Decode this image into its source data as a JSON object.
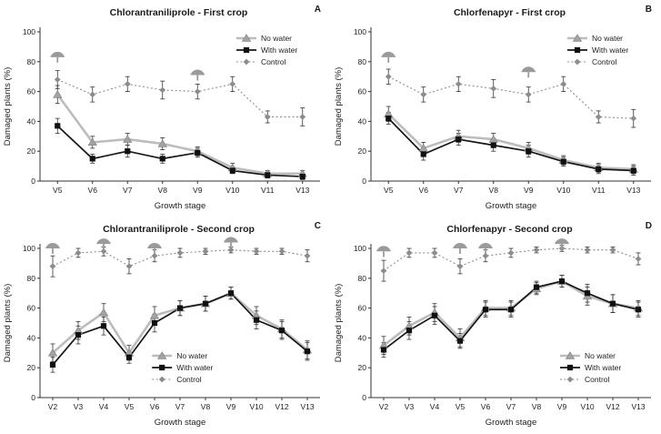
{
  "icons": {
    "spray": "water-spray-icon"
  },
  "colors": {
    "no_water_line": "#bcbcbc",
    "with_water_line": "#161616",
    "control_line": "#8c8c8c",
    "error_bar": "#333333",
    "axis": "#333333"
  },
  "chart_data": [
    {
      "type": "line",
      "title": "Chlorantraniliprole - First crop",
      "panel_label": "A",
      "xlabel": "Growth stage",
      "ylabel": "Damaged plants (%)",
      "ylim": [
        0,
        100
      ],
      "yticks": [
        0,
        20,
        40,
        60,
        80,
        100
      ],
      "categories": [
        "V5",
        "V6",
        "V7",
        "V8",
        "V9",
        "V10",
        "V11",
        "V13"
      ],
      "legend_pos": "top-right",
      "series": [
        {
          "name": "No water",
          "color": "#bcbcbc",
          "marker": "triangle",
          "marker_color": "#a3a3a3",
          "line": "solid",
          "width": 2.6,
          "values": [
            58,
            26,
            28,
            25,
            20,
            9,
            5,
            5
          ],
          "errors": [
            6,
            4,
            4,
            4,
            3,
            3,
            2,
            2
          ]
        },
        {
          "name": "With water",
          "color": "#161616",
          "marker": "square",
          "marker_color": "#111111",
          "line": "solid",
          "width": 1.7,
          "values": [
            37,
            15,
            20,
            15,
            19,
            7,
            4,
            3
          ],
          "errors": [
            5,
            3,
            4,
            3,
            3,
            2,
            2,
            2
          ]
        },
        {
          "name": "Control",
          "color": "#8c8c8c",
          "marker": "diamond",
          "marker_color": "#8c8c8c",
          "line": "dotted",
          "width": 1.1,
          "values": [
            68,
            58,
            65,
            61,
            60,
            65,
            43,
            43
          ],
          "errors": [
            6,
            5,
            5,
            6,
            5,
            5,
            4,
            6
          ]
        }
      ],
      "spray_markers": [
        {
          "category": "V5",
          "y": 83
        },
        {
          "category": "V9",
          "y": 71
        }
      ]
    },
    {
      "type": "line",
      "title": "Chlorfenapyr - First crop",
      "panel_label": "B",
      "xlabel": "Growth stage",
      "ylabel": "Damaged plants (%)",
      "ylim": [
        0,
        100
      ],
      "yticks": [
        0,
        20,
        40,
        60,
        80,
        100
      ],
      "categories": [
        "V5",
        "V6",
        "V7",
        "V8",
        "V9",
        "V10",
        "V11",
        "V13"
      ],
      "legend_pos": "top-right",
      "series": [
        {
          "name": "No water",
          "color": "#bcbcbc",
          "marker": "triangle",
          "marker_color": "#a3a3a3",
          "line": "solid",
          "width": 2.6,
          "values": [
            45,
            22,
            30,
            28,
            22,
            14,
            9,
            8
          ],
          "errors": [
            5,
            4,
            4,
            4,
            4,
            3,
            3,
            3
          ]
        },
        {
          "name": "With water",
          "color": "#161616",
          "marker": "square",
          "marker_color": "#111111",
          "line": "solid",
          "width": 1.7,
          "values": [
            42,
            18,
            28,
            24,
            20,
            13,
            8,
            7
          ],
          "errors": [
            4,
            4,
            4,
            4,
            4,
            3,
            3,
            3
          ]
        },
        {
          "name": "Control",
          "color": "#8c8c8c",
          "marker": "diamond",
          "marker_color": "#8c8c8c",
          "line": "dotted",
          "width": 1.1,
          "values": [
            70,
            58,
            65,
            62,
            58,
            65,
            43,
            42
          ],
          "errors": [
            5,
            5,
            5,
            6,
            5,
            5,
            4,
            6
          ]
        }
      ],
      "spray_markers": [
        {
          "category": "V5",
          "y": 83
        },
        {
          "category": "V9",
          "y": 73
        }
      ]
    },
    {
      "type": "line",
      "title": "Chlorantraniliprole - Second crop",
      "panel_label": "C",
      "xlabel": "Growth stage",
      "ylabel": "Damaged plants (%)",
      "ylim": [
        0,
        100
      ],
      "yticks": [
        0,
        20,
        40,
        60,
        80,
        100
      ],
      "categories": [
        "V2",
        "V3",
        "V4",
        "V5",
        "V6",
        "V7",
        "V8",
        "V9",
        "V10",
        "V12",
        "V13"
      ],
      "legend_pos": "bottom-center",
      "series": [
        {
          "name": "No water",
          "color": "#bcbcbc",
          "marker": "triangle",
          "marker_color": "#a3a3a3",
          "line": "solid",
          "width": 2.6,
          "values": [
            30,
            45,
            57,
            30,
            55,
            60,
            63,
            70,
            55,
            46,
            32
          ],
          "errors": [
            6,
            6,
            6,
            5,
            6,
            5,
            5,
            4,
            6,
            6,
            6
          ]
        },
        {
          "name": "With water",
          "color": "#161616",
          "marker": "square",
          "marker_color": "#111111",
          "line": "solid",
          "width": 1.7,
          "values": [
            22,
            42,
            48,
            27,
            50,
            60,
            63,
            70,
            52,
            45,
            31
          ],
          "errors": [
            5,
            6,
            6,
            4,
            6,
            5,
            5,
            4,
            6,
            6,
            6
          ]
        },
        {
          "name": "Control",
          "color": "#8c8c8c",
          "marker": "diamond",
          "marker_color": "#8c8c8c",
          "line": "dotted",
          "width": 1.1,
          "values": [
            88,
            97,
            98,
            88,
            95,
            97,
            98,
            99,
            98,
            98,
            95
          ],
          "errors": [
            7,
            3,
            3,
            5,
            4,
            3,
            2,
            2,
            2,
            2,
            4
          ]
        }
      ],
      "spray_markers": [
        {
          "category": "V2",
          "y": 100
        },
        {
          "category": "V4",
          "y": 103
        },
        {
          "category": "V6",
          "y": 100
        },
        {
          "category": "V9",
          "y": 104
        }
      ]
    },
    {
      "type": "line",
      "title": "Chlorfenapyr - Second crop",
      "panel_label": "D",
      "xlabel": "Growth stage",
      "ylabel": "Damaged plants (%)",
      "ylim": [
        0,
        100
      ],
      "yticks": [
        0,
        20,
        40,
        60,
        80,
        100
      ],
      "categories": [
        "V2",
        "V3",
        "V4",
        "V5",
        "V6",
        "V7",
        "V8",
        "V9",
        "V10",
        "V12",
        "V13"
      ],
      "legend_pos": "bottom-right",
      "series": [
        {
          "name": "No water",
          "color": "#bcbcbc",
          "marker": "triangle",
          "marker_color": "#a3a3a3",
          "line": "solid",
          "width": 2.6,
          "values": [
            35,
            48,
            57,
            40,
            60,
            60,
            73,
            78,
            68,
            63,
            60
          ],
          "errors": [
            6,
            6,
            6,
            6,
            5,
            5,
            4,
            4,
            6,
            6,
            5
          ]
        },
        {
          "name": "With water",
          "color": "#161616",
          "marker": "square",
          "marker_color": "#111111",
          "line": "solid",
          "width": 1.7,
          "values": [
            32,
            45,
            55,
            38,
            59,
            59,
            74,
            78,
            70,
            63,
            59
          ],
          "errors": [
            5,
            6,
            6,
            5,
            5,
            5,
            4,
            4,
            6,
            6,
            5
          ]
        },
        {
          "name": "Control",
          "color": "#8c8c8c",
          "marker": "diamond",
          "marker_color": "#8c8c8c",
          "line": "dotted",
          "width": 1.1,
          "values": [
            85,
            97,
            97,
            88,
            95,
            97,
            99,
            100,
            99,
            99,
            93
          ],
          "errors": [
            7,
            3,
            3,
            5,
            4,
            3,
            2,
            2,
            2,
            2,
            4
          ]
        }
      ],
      "spray_markers": [
        {
          "category": "V2",
          "y": 98
        },
        {
          "category": "V5",
          "y": 100
        },
        {
          "category": "V6",
          "y": 100
        },
        {
          "category": "V9",
          "y": 103
        }
      ]
    }
  ]
}
